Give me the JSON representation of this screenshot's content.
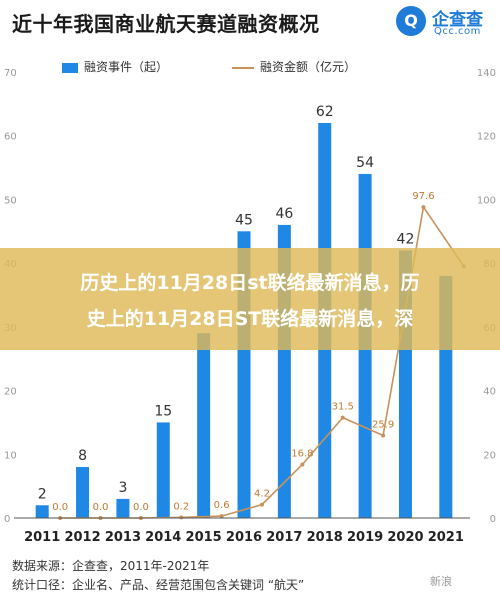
{
  "header": {
    "title": "近十年我国商业航天赛道融资概况",
    "logo_mark": "Q",
    "logo_name": "企查查",
    "logo_sub": "Qcc.com"
  },
  "legend": {
    "bar_label": "融资事件（起）",
    "line_label": "融资金额（亿元）"
  },
  "banner": {
    "line1": "历史上的11月28日st联络最新消息，历",
    "line2": "史上的11月28日ST联络最新消息，深"
  },
  "footer": {
    "source": "数据来源：企查查，2011年-2021年",
    "note": "统计口径：企业名、产品、经营范围包含关键词 “航天”",
    "watermark": "新浪"
  },
  "chart_data": {
    "type": "bar",
    "categories": [
      "2011",
      "2012",
      "2013",
      "2014",
      "2015",
      "2016",
      "2017",
      "2018",
      "2019",
      "2020",
      "2021"
    ],
    "series": [
      {
        "name": "融资事件（起）",
        "type": "bar",
        "axis": "left",
        "color": "#1f88e5",
        "values": [
          2,
          8,
          3,
          15,
          29,
          45,
          46,
          62,
          54,
          42,
          38
        ]
      },
      {
        "name": "融资金额（亿元）",
        "type": "line",
        "axis": "right",
        "color": "#c8935a",
        "values": [
          0.0,
          0.0,
          0.0,
          0.2,
          0.6,
          4.2,
          16.8,
          31.5,
          25.9,
          97.6,
          79.0
        ]
      }
    ],
    "bar_labels": [
      "2",
      "8",
      "3",
      "15",
      "",
      "45",
      "46",
      "62",
      "54",
      "42",
      ""
    ],
    "line_labels": [
      "0.0",
      "0.0",
      "0.0",
      "0.2",
      "0.6",
      "4.2",
      "16.8",
      "31.5",
      "25.9",
      "97.6",
      ""
    ],
    "y_left": {
      "lim": [
        0,
        70
      ],
      "ticks": [
        "0",
        "10",
        "20",
        "30",
        "40",
        "50",
        "60",
        "70"
      ]
    },
    "y_right": {
      "lim": [
        0,
        140
      ],
      "ticks": [
        "0",
        "20",
        "40",
        "60",
        "80",
        "100",
        "120",
        "140"
      ]
    },
    "grid": false,
    "legend_position": "top"
  }
}
